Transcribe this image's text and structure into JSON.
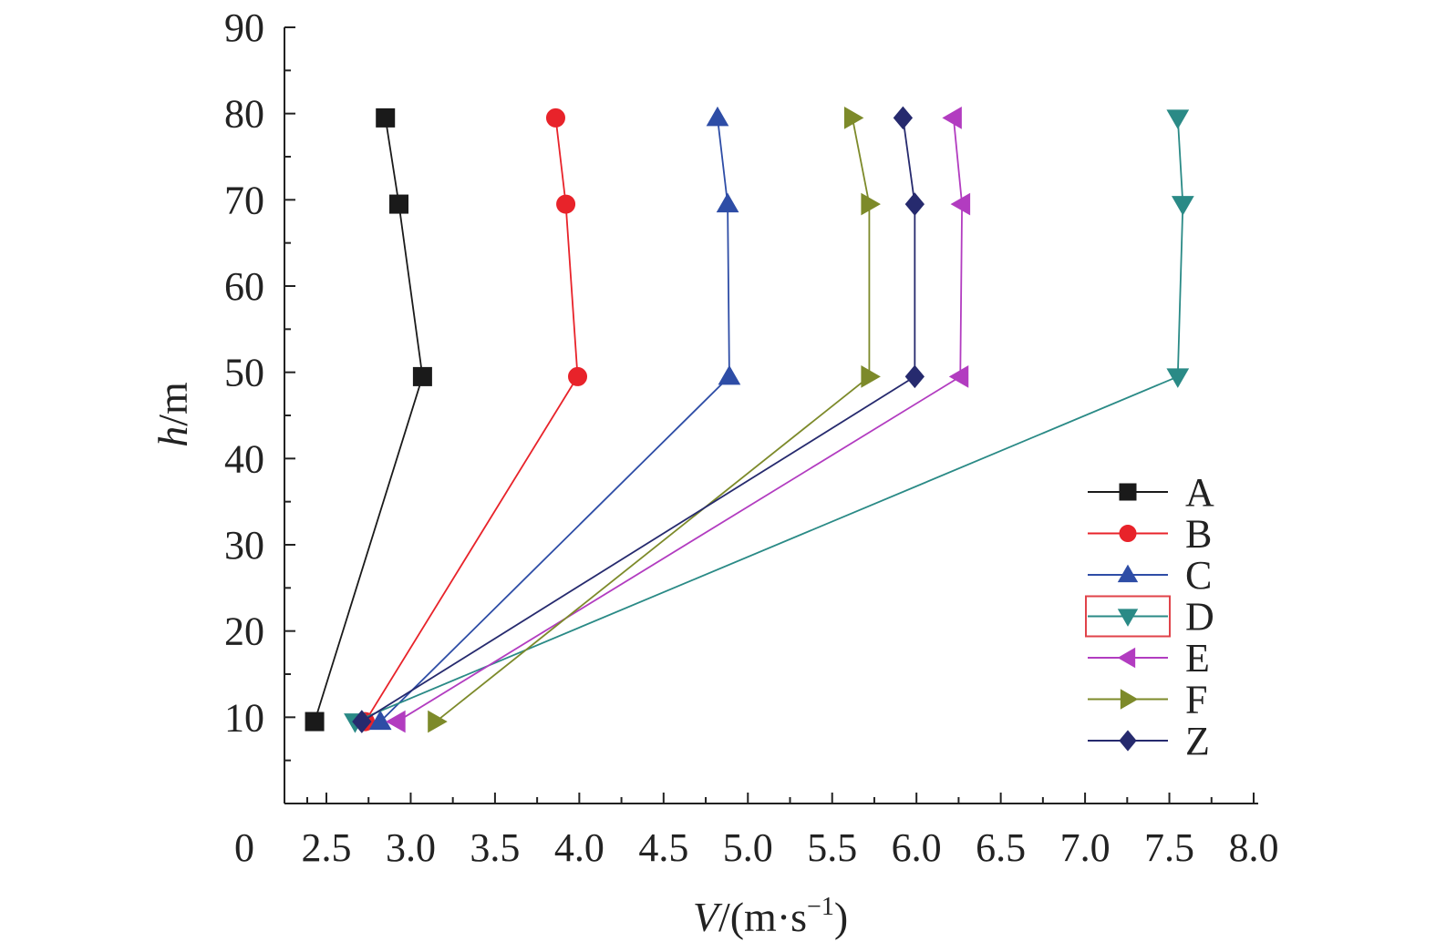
{
  "chart_data": {
    "type": "line",
    "xlabel_italic": "V",
    "xlabel_rest": "/(m·s",
    "xlabel_sup": "−1",
    "xlabel_close": ")",
    "ylabel_italic": "h",
    "ylabel_rest": "/m",
    "x_ticks": [
      "0",
      "2.5",
      "3.0",
      "3.5",
      "4.0",
      "4.5",
      "5.0",
      "5.5",
      "6.0",
      "6.5",
      "7.0",
      "7.5",
      "8.0"
    ],
    "y_ticks": [
      "10",
      "20",
      "30",
      "40",
      "50",
      "60",
      "70",
      "80",
      "90"
    ],
    "xlim": [
      2.0,
      8.0
    ],
    "ylim": [
      0,
      90
    ],
    "legend_position": "right",
    "series": [
      {
        "name": "A",
        "color": "#1a1a1a",
        "marker": "square",
        "points": [
          [
            2.43,
            9.5
          ],
          [
            3.07,
            49.5
          ],
          [
            2.93,
            69.5
          ],
          [
            2.85,
            79.5
          ]
        ]
      },
      {
        "name": "B",
        "color": "#e8232a",
        "marker": "circle",
        "points": [
          [
            2.73,
            9.5
          ],
          [
            3.99,
            49.5
          ],
          [
            3.92,
            69.5
          ],
          [
            3.86,
            79.5
          ]
        ]
      },
      {
        "name": "C",
        "color": "#2e4da6",
        "marker": "triangle-up",
        "points": [
          [
            2.82,
            9.5
          ],
          [
            4.89,
            49.5
          ],
          [
            4.88,
            69.5
          ],
          [
            4.82,
            79.5
          ]
        ]
      },
      {
        "name": "D",
        "color": "#2a8a86",
        "marker": "triangle-down",
        "points": [
          [
            2.67,
            9.5
          ],
          [
            7.55,
            49.5
          ],
          [
            7.58,
            69.5
          ],
          [
            7.55,
            79.5
          ]
        ]
      },
      {
        "name": "E",
        "color": "#b23cc0",
        "marker": "triangle-left",
        "points": [
          [
            2.92,
            9.5
          ],
          [
            6.26,
            49.5
          ],
          [
            6.27,
            69.5
          ],
          [
            6.22,
            79.5
          ]
        ]
      },
      {
        "name": "F",
        "color": "#7d8a2a",
        "marker": "triangle-right",
        "points": [
          [
            3.15,
            9.5
          ],
          [
            5.72,
            49.5
          ],
          [
            5.72,
            69.5
          ],
          [
            5.62,
            79.5
          ]
        ]
      },
      {
        "name": "Z",
        "color": "#262a6e",
        "marker": "diamond",
        "points": [
          [
            2.71,
            9.5
          ],
          [
            5.99,
            49.5
          ],
          [
            5.99,
            69.5
          ],
          [
            5.92,
            79.5
          ]
        ]
      }
    ],
    "legend_highlight": "D",
    "legend_highlight_color": "#e0434a"
  }
}
